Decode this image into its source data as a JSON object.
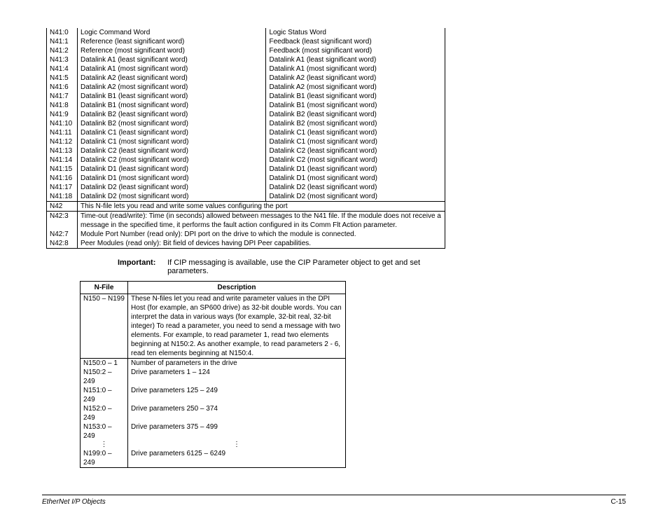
{
  "table1": {
    "rows": [
      {
        "k": "N41:0",
        "a": "Logic Command Word",
        "b": "Logic Status Word"
      },
      {
        "k": "N41:1",
        "a": "Reference (least significant word)",
        "b": "Feedback (least significant word)"
      },
      {
        "k": "N41:2",
        "a": "Reference (most significant word)",
        "b": "Feedback (most significant word)"
      },
      {
        "k": "N41:3",
        "a": "Datalink A1 (least significant word)",
        "b": "Datalink A1 (least significant word)"
      },
      {
        "k": "N41:4",
        "a": "Datalink A1 (most significant word)",
        "b": "Datalink A1 (most significant word)"
      },
      {
        "k": "N41:5",
        "a": "Datalink A2 (least significant word)",
        "b": "Datalink A2 (least significant word)"
      },
      {
        "k": "N41:6",
        "a": "Datalink A2 (most significant word)",
        "b": "Datalink A2 (most significant word)"
      },
      {
        "k": "N41:7",
        "a": "Datalink B1 (least significant word)",
        "b": "Datalink B1 (least significant word)"
      },
      {
        "k": "N41:8",
        "a": "Datalink B1 (most significant word)",
        "b": "Datalink B1 (most significant word)"
      },
      {
        "k": "N41:9",
        "a": "Datalink B2 (least significant word)",
        "b": "Datalink B2 (least significant word)"
      },
      {
        "k": "N41:10",
        "a": "Datalink B2 (most significant word)",
        "b": "Datalink B2 (most significant word)"
      },
      {
        "k": "N41:11",
        "a": "Datalink C1 (least significant word)",
        "b": "Datalink C1 (least significant word)"
      },
      {
        "k": "N41:12",
        "a": "Datalink C1 (most significant word)",
        "b": "Datalink C1 (most significant word)"
      },
      {
        "k": "N41:13",
        "a": "Datalink C2 (least significant word)",
        "b": "Datalink C2 (least significant word)"
      },
      {
        "k": "N41:14",
        "a": "Datalink C2 (most significant word)",
        "b": "Datalink C2 (most significant word)"
      },
      {
        "k": "N41:15",
        "a": "Datalink D1 (least significant word)",
        "b": "Datalink D1 (least significant word)"
      },
      {
        "k": "N41:16",
        "a": "Datalink D1 (most significant word)",
        "b": "Datalink D1 (most significant word)"
      },
      {
        "k": "N41:17",
        "a": "Datalink D2 (least significant word)",
        "b": "Datalink D2 (least significant word)"
      },
      {
        "k": "N41:18",
        "a": "Datalink D2 (most significant word)",
        "b": "Datalink D2 (most significant word)"
      }
    ],
    "n42": {
      "k": "N42",
      "desc": "This N-file lets you read and write some values configuring the port"
    },
    "n42_3": {
      "k": "N42:3",
      "desc": "Time-out (read/write): Time (in seconds) allowed between messages to the N41 file. If the module does not receive a message in the specified time, it performs the fault action configured in its Comm Flt Action parameter."
    },
    "n42_7": {
      "k": "N42:7",
      "desc": "Module Port Number (read only): DPI port on the drive to which the module is connected."
    },
    "n42_8": {
      "k": "N42:8",
      "desc": "Peer Modules (read only): Bit field of devices having DPI Peer capabilities."
    }
  },
  "important": {
    "label": "Important:",
    "text": "If CIP messaging is available, use the CIP Parameter object to get and set parameters."
  },
  "table2": {
    "headers": {
      "n": "N-File",
      "d": "Description"
    },
    "r1": {
      "n": "N150 – N199",
      "d": "These N-files let you read and write parameter values in the DPI Host (for example, an SP600 drive) as 32-bit double words. You can interpret the data in various ways (for example, 32-bit real, 32-bit integer) To read a parameter, you need to send a message with two elements. For example, to read parameter 1, read two elements beginning at N150:2. As another example, to read parameters 2 - 6, read ten elements beginning at N150:4."
    },
    "rows": [
      {
        "n": "N150:0 – 1",
        "d": "Number of parameters in the drive"
      },
      {
        "n": "N150:2 – 249",
        "d": "Drive parameters 1 – 124"
      },
      {
        "n": "N151:0 – 249",
        "d": "Drive parameters 125 – 249"
      },
      {
        "n": "N152:0 – 249",
        "d": "Drive parameters 250 – 374"
      },
      {
        "n": "N153:0 – 249",
        "d": "Drive parameters 375 – 499"
      }
    ],
    "last": {
      "n": "N199:0 – 249",
      "d": "Drive parameters 6125 – 6249"
    }
  },
  "footer": {
    "left": "EtherNet I/P Objects",
    "right": "C-15"
  }
}
